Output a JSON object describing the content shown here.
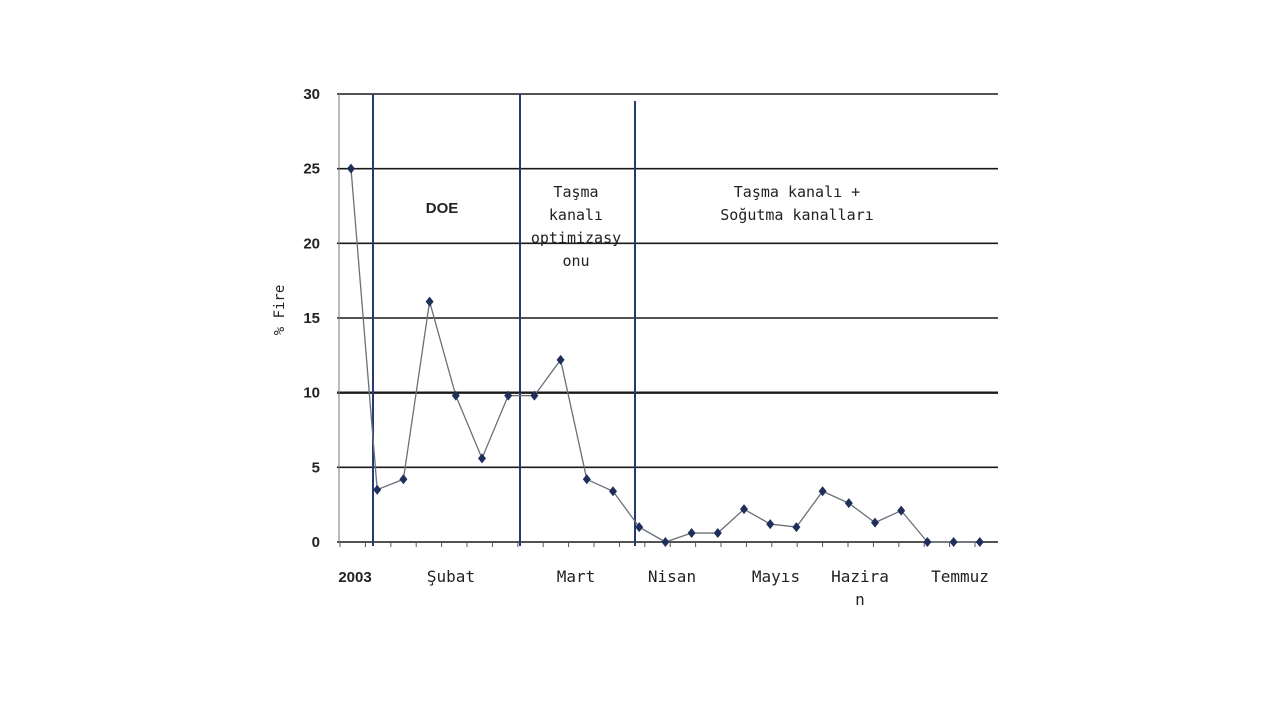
{
  "chart_data": {
    "type": "line",
    "ylabel": "% Fire",
    "ylim": [
      0,
      30
    ],
    "yticks": [
      "0",
      "5",
      "10",
      "15",
      "20",
      "25",
      "30"
    ],
    "grid": true,
    "series_color": "#1f2f5a",
    "values": [
      25,
      3.5,
      4.2,
      16.1,
      9.8,
      5.6,
      9.8,
      9.8,
      12.2,
      4.2,
      3.4,
      1.0,
      0.0,
      0.6,
      0.6,
      2.2,
      1.2,
      1.0,
      3.4,
      2.6,
      1.3,
      2.1,
      0.0,
      0.0,
      0.0
    ],
    "x_labels": [
      {
        "label": "2003",
        "style": "bold"
      },
      {
        "label": "Şubat"
      },
      {
        "label": "Mart"
      },
      {
        "label": "Nisan"
      },
      {
        "label": "Mayıs"
      },
      {
        "label": "Hazira\nn"
      },
      {
        "label": "Temmuz"
      }
    ],
    "regions": [
      {
        "label": "DOE"
      },
      {
        "label": "Taşma\nkanalı\noptimizasy\nonu"
      },
      {
        "label": "Taşma kanalı +\nSoğutma kanalları"
      }
    ]
  }
}
